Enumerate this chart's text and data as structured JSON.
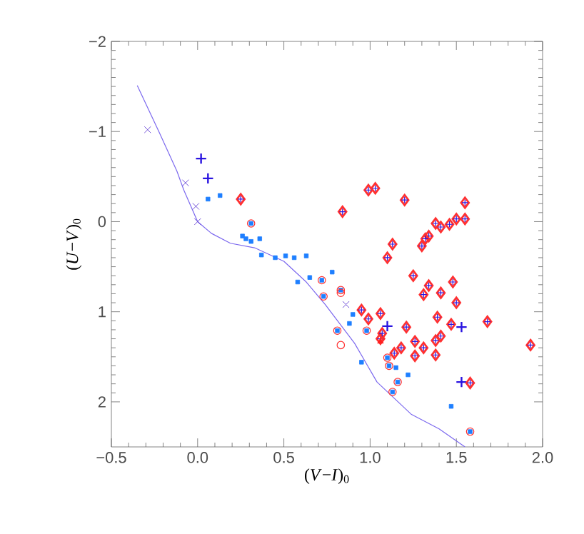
{
  "chart_data": {
    "type": "scatter",
    "xlabel": "(*V*−*I*)$_{0}$",
    "ylabel": "(*U*−*V*)$_{0}$",
    "xlim": [
      -0.5,
      2.0
    ],
    "ylim": [
      2.5,
      -2
    ],
    "xticks": [
      {
        "value": -0.5,
        "label": "−0.5"
      },
      {
        "value": 0,
        "label": "0.0"
      },
      {
        "value": 0.5,
        "label": "0.5"
      },
      {
        "value": 1,
        "label": "1.0"
      },
      {
        "value": 1.5,
        "label": "1.5"
      },
      {
        "value": 2,
        "label": "2.0"
      }
    ],
    "yticks": [
      {
        "value": -2,
        "label": "−2"
      },
      {
        "value": -1,
        "label": "−1"
      },
      0,
      1,
      2
    ],
    "series": [
      {
        "type": "line",
        "color": "#7b68ee",
        "marker": "none",
        "line_style": "solid",
        "x": [
          -0.35,
          -0.22,
          -0.12,
          -0.08,
          0.0,
          0.08,
          0.19,
          0.33,
          0.5,
          0.63,
          0.74,
          0.91,
          1.04,
          1.24,
          1.4,
          1.55
        ],
        "values": [
          -1.51,
          -0.98,
          -0.56,
          -0.35,
          0.0,
          0.13,
          0.24,
          0.29,
          0.44,
          0.67,
          0.92,
          1.35,
          1.78,
          2.14,
          2.3,
          2.5
        ]
      },
      {
        "color": "#1e7fff",
        "marker": "square",
        "x": [
          0.06,
          0.13,
          0.26,
          0.28,
          0.31,
          0.36,
          0.37,
          0.45,
          0.51,
          0.56,
          0.63,
          0.58,
          0.65,
          0.78,
          0.88,
          0.9,
          0.95,
          1.15,
          1.22,
          1.47,
          0.31,
          0.72,
          0.73,
          0.83,
          0.81,
          0.98,
          1.1,
          1.11,
          1.16,
          1.13,
          1.58
        ],
        "values": [
          -0.25,
          -0.29,
          0.16,
          0.19,
          0.22,
          0.19,
          0.37,
          0.4,
          0.38,
          0.4,
          0.38,
          0.67,
          0.62,
          0.56,
          1.13,
          1.03,
          1.56,
          1.62,
          1.7,
          2.05,
          0.02,
          0.65,
          0.83,
          0.76,
          1.21,
          1.21,
          1.51,
          1.6,
          1.78,
          1.89,
          2.33
        ]
      },
      {
        "color": "#ff3030",
        "marker": "circle",
        "x": [
          0.31,
          0.72,
          0.73,
          0.83,
          0.83,
          0.81,
          0.83,
          0.98,
          1.1,
          1.11,
          1.16,
          1.13,
          1.58
        ],
        "values": [
          0.02,
          0.65,
          0.83,
          0.76,
          0.79,
          1.21,
          1.37,
          1.21,
          1.51,
          1.6,
          1.78,
          1.89,
          2.33
        ]
      },
      {
        "color": "#7050d8",
        "marker": "cross",
        "x": [
          -0.29,
          -0.07,
          -0.01,
          0.0,
          0.86
        ],
        "values": [
          -1.02,
          -0.43,
          -0.17,
          0.0,
          0.92
        ]
      },
      {
        "color": "#2a14e0",
        "x": [
          0.02,
          0.06,
          1.53,
          1.53,
          1.1
        ],
        "values": [
          -0.7,
          -0.48,
          1.17,
          1.78,
          1.16
        ]
      },
      {
        "color": "#ff3030",
        "marker": "diamond",
        "x": [
          0.99,
          1.03,
          0.84,
          1.2,
          1.55,
          1.38,
          1.41,
          1.46,
          1.5,
          1.55,
          1.34,
          1.32,
          1.3,
          1.13,
          1.1,
          1.25,
          1.48,
          1.34,
          1.31,
          1.41,
          1.5,
          0.95,
          0.99,
          1.06,
          1.39,
          1.47,
          1.68,
          1.21,
          1.41,
          1.38,
          1.26,
          1.31,
          1.18,
          1.14,
          1.26,
          1.38,
          1.06,
          1.07,
          1.93,
          1.58,
          0.25
        ],
        "values": [
          -0.35,
          -0.37,
          -0.11,
          -0.24,
          -0.21,
          0.02,
          0.06,
          0.03,
          -0.03,
          -0.03,
          0.16,
          0.19,
          0.27,
          0.25,
          0.4,
          0.6,
          0.67,
          0.71,
          0.81,
          0.79,
          0.9,
          0.98,
          1.08,
          1.02,
          1.06,
          1.14,
          1.11,
          1.17,
          1.27,
          1.32,
          1.33,
          1.4,
          1.4,
          1.46,
          1.49,
          1.48,
          1.3,
          1.24,
          1.37,
          1.79,
          -0.25
        ]
      },
      {
        "color": "#ff2020",
        "marker": "triangle",
        "x": [
          1.06
        ],
        "values": [
          1.33
        ]
      }
    ]
  }
}
